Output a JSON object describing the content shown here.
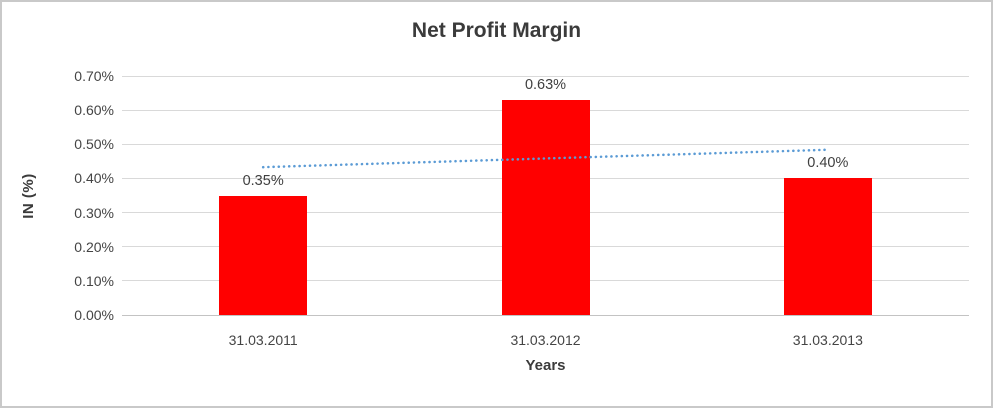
{
  "page": {
    "background": "#ffffff",
    "border_color": "#c9c9c9"
  },
  "chart_data": {
    "type": "bar",
    "title": "Net Profit Margin",
    "xlabel": "Years",
    "ylabel": "IN (%)",
    "categories": [
      "31.03.2011",
      "31.03.2012",
      "31.03.2013"
    ],
    "values": [
      0.35,
      0.63,
      0.4
    ],
    "value_labels": [
      "0.35%",
      "0.63%",
      "0.40%"
    ],
    "ylim": [
      0,
      0.7
    ],
    "ytick_step": 0.1,
    "ytick_labels": [
      "0.00%",
      "0.10%",
      "0.20%",
      "0.30%",
      "0.40%",
      "0.50%",
      "0.60%",
      "0.70%"
    ],
    "grid": true,
    "legend": "none",
    "bar_color": "#FF0000",
    "label_color": "#404040",
    "axis_text_color": "#444444",
    "gridline_color": "#D9D9D9",
    "trendline": {
      "style": "dotted",
      "color": "#5B9BD5",
      "start_value": 0.433,
      "end_value": 0.484
    }
  }
}
